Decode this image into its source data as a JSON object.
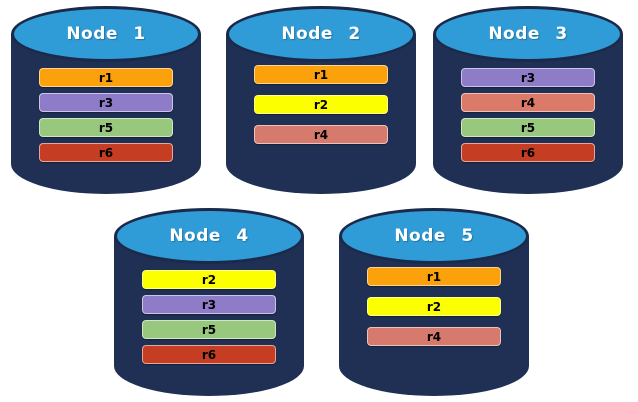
{
  "diagram": {
    "background": "#ffffff",
    "cylinder_style": {
      "body_color": "#1F3054",
      "top_color": "#2F9CD7",
      "top_border_color": "#1B2A4A",
      "title_color": "#ffffff"
    },
    "nodes": [
      {
        "title": "Node 1",
        "replicas": [
          {
            "label": "r1",
            "color": "#FBA10B"
          },
          {
            "label": "r3",
            "color": "#8F7CC9"
          },
          {
            "label": "r5",
            "color": "#98C77E"
          },
          {
            "label": "r6",
            "color": "#C53D22"
          }
        ]
      },
      {
        "title": "Node 2",
        "replicas": [
          {
            "label": "r1",
            "color": "#FBA10B"
          },
          {
            "label": "r2",
            "color": "#FBFF00"
          },
          {
            "label": "r4",
            "color": "#D57A6C"
          }
        ]
      },
      {
        "title": "Node 3",
        "replicas": [
          {
            "label": "r3",
            "color": "#8F7CC9"
          },
          {
            "label": "r4",
            "color": "#DC7A69"
          },
          {
            "label": "r5",
            "color": "#98C77E"
          },
          {
            "label": "r6",
            "color": "#C53D22"
          }
        ]
      },
      {
        "title": "Node 4",
        "replicas": [
          {
            "label": "r2",
            "color": "#FBFF00"
          },
          {
            "label": "r3",
            "color": "#8F7CC9"
          },
          {
            "label": "r5",
            "color": "#98C77E"
          },
          {
            "label": "r6",
            "color": "#C53D22"
          }
        ]
      },
      {
        "title": "Node 5",
        "replicas": [
          {
            "label": "r1",
            "color": "#FBA10B"
          },
          {
            "label": "r2",
            "color": "#FBFF00"
          },
          {
            "label": "r4",
            "color": "#D57A6C"
          }
        ]
      }
    ]
  }
}
